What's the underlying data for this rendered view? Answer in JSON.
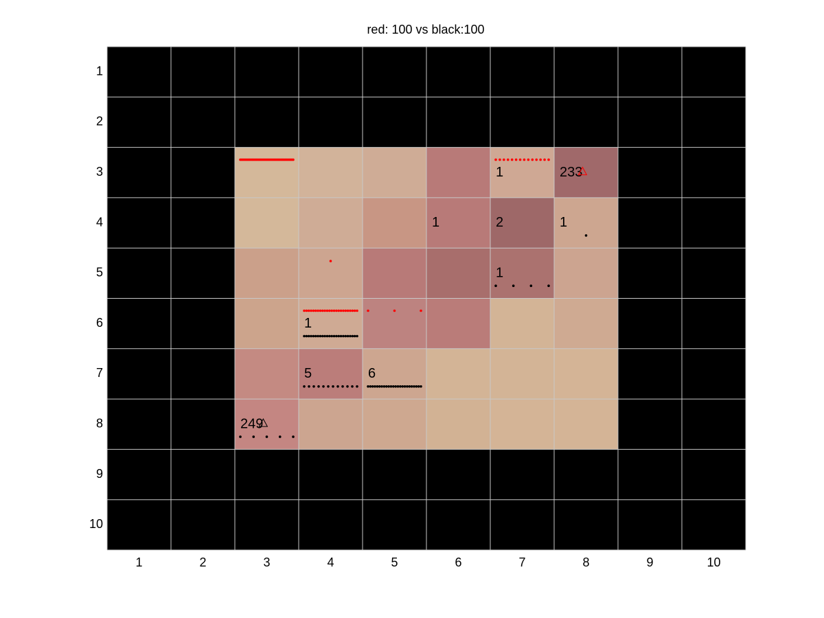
{
  "title": "red: 100 vs black:100",
  "board": {
    "background": "#000000",
    "grid_color": "#c8c8c8",
    "row_labels": [
      "1",
      "2",
      "3",
      "4",
      "5",
      "6",
      "7",
      "8",
      "9",
      "10"
    ],
    "column_labels": [
      "1",
      "2",
      "3",
      "4",
      "5",
      "6",
      "7",
      "8",
      "9",
      "10"
    ],
    "cells": [
      {
        "row": 3,
        "col": 3,
        "color": "#d4b89a"
      },
      {
        "row": 3,
        "col": 4,
        "color": "#d2b39a"
      },
      {
        "row": 3,
        "col": 5,
        "color": "#cfac96"
      },
      {
        "row": 3,
        "col": 6,
        "color": "#b87a78"
      },
      {
        "row": 3,
        "col": 7,
        "color": "#cfa894",
        "label": "1"
      },
      {
        "row": 3,
        "col": 8,
        "color": "#a0696a",
        "label": "233",
        "marker": "red"
      },
      {
        "row": 4,
        "col": 3,
        "color": "#d4b89a"
      },
      {
        "row": 4,
        "col": 4,
        "color": "#cfac96"
      },
      {
        "row": 4,
        "col": 5,
        "color": "#c89684"
      },
      {
        "row": 4,
        "col": 6,
        "color": "#b87a78",
        "label": "1"
      },
      {
        "row": 4,
        "col": 7,
        "color": "#9e6868",
        "label": "2"
      },
      {
        "row": 4,
        "col": 8,
        "color": "#cda690",
        "label": "1"
      },
      {
        "row": 5,
        "col": 3,
        "color": "#cba08a"
      },
      {
        "row": 5,
        "col": 4,
        "color": "#cda590"
      },
      {
        "row": 5,
        "col": 5,
        "color": "#b87a78"
      },
      {
        "row": 5,
        "col": 6,
        "color": "#a86e6c"
      },
      {
        "row": 5,
        "col": 7,
        "color": "#ab726f",
        "label": "1"
      },
      {
        "row": 5,
        "col": 8,
        "color": "#cca490"
      },
      {
        "row": 6,
        "col": 3,
        "color": "#cca48c"
      },
      {
        "row": 6,
        "col": 4,
        "color": "#cfaa94",
        "label": "1"
      },
      {
        "row": 6,
        "col": 5,
        "color": "#bd8380"
      },
      {
        "row": 6,
        "col": 6,
        "color": "#ba7c79"
      },
      {
        "row": 6,
        "col": 7,
        "color": "#d3b496"
      },
      {
        "row": 6,
        "col": 8,
        "color": "#cfaa92"
      },
      {
        "row": 7,
        "col": 3,
        "color": "#c48a82"
      },
      {
        "row": 7,
        "col": 4,
        "color": "#bb7d7a",
        "label": "5"
      },
      {
        "row": 7,
        "col": 5,
        "color": "#cda690",
        "label": "6"
      },
      {
        "row": 7,
        "col": 6,
        "color": "#d3b496"
      },
      {
        "row": 7,
        "col": 7,
        "color": "#d3b496"
      },
      {
        "row": 7,
        "col": 8,
        "color": "#d4b496"
      },
      {
        "row": 8,
        "col": 3,
        "color": "#c48682",
        "label": "249",
        "marker": "black"
      },
      {
        "row": 8,
        "col": 4,
        "color": "#cca590"
      },
      {
        "row": 8,
        "col": 5,
        "color": "#cea890"
      },
      {
        "row": 8,
        "col": 6,
        "color": "#d2b294"
      },
      {
        "row": 8,
        "col": 7,
        "color": "#d4b496"
      },
      {
        "row": 8,
        "col": 8,
        "color": "#d4b496"
      }
    ]
  }
}
